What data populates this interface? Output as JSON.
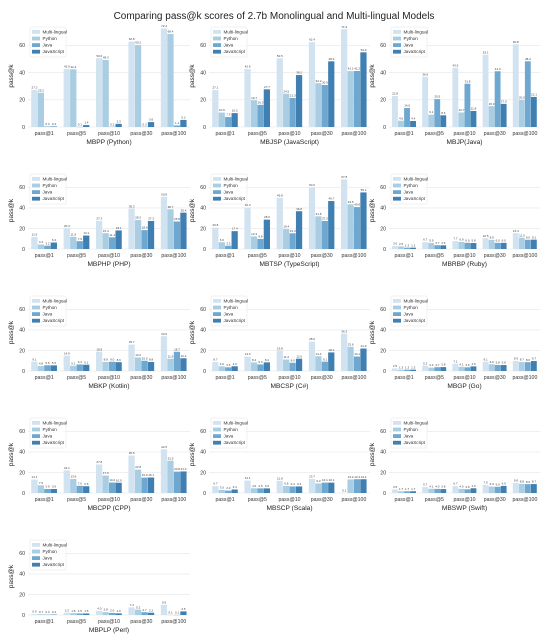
{
  "figure_title": "Comparing pass@k scores of 2.7b Monolingual and Multi-lingual Models",
  "colors": {
    "Multi-lingual": "#d1e2f0",
    "Python": "#a9cde3",
    "Java": "#6ea7cf",
    "JavaScript": "#3f7fb2"
  },
  "chart_data": [
    {
      "type": "bar",
      "subtitle": "MBPP (Python)",
      "ylabel": "pass@k",
      "ylim": [
        0,
        75
      ],
      "categories": [
        "pass@1",
        "pass@5",
        "pass@10",
        "pass@30",
        "pass@100"
      ],
      "series": [
        {
          "name": "Multi-lingual",
          "values": [
            27.2,
            42.6,
            50.6,
            62.8,
            72.4
          ]
        },
        {
          "name": "Python",
          "values": [
            25.2,
            42.4,
            49.3,
            60.2,
            68.4
          ]
        },
        {
          "name": "Java",
          "values": [
            0.4,
            0.1,
            0.2,
            0.2,
            1.1
          ]
        },
        {
          "name": "JavaScript",
          "values": [
            0.4,
            1.4,
            2.3,
            3.6,
            5.2
          ]
        }
      ],
      "legend": "top-left",
      "grid": true
    },
    {
      "type": "bar",
      "subtitle": "MBJSP (JavaScript)",
      "ylabel": "pass@k",
      "ylim": [
        0,
        75
      ],
      "categories": [
        "pass@1",
        "pass@5",
        "pass@10",
        "pass@30",
        "pass@100"
      ],
      "series": [
        {
          "name": "Multi-lingual",
          "values": [
            27.1,
            42.6,
            50.5,
            62.4,
            71.9
          ]
        },
        {
          "name": "Python",
          "values": [
            10.6,
            19.7,
            24.5,
            32.2,
            41.1
          ]
        },
        {
          "name": "Java",
          "values": [
            7.3,
            16.3,
            21.3,
            30.9,
            41.2
          ]
        },
        {
          "name": "JavaScript",
          "values": [
            10.2,
            27.7,
            38.2,
            48.3,
            54.9
          ]
        }
      ],
      "legend": "top-left",
      "grid": true
    },
    {
      "type": "bar",
      "subtitle": "MBJP(Java)",
      "ylabel": "pass@k",
      "ylim": [
        0,
        75
      ],
      "categories": [
        "pass@1",
        "pass@5",
        "pass@10",
        "pass@30",
        "pass@100"
      ],
      "series": [
        {
          "name": "Multi-lingual",
          "values": [
            22.8,
            36.9,
            43.5,
            53.1,
            60.8
          ]
        },
        {
          "name": "Python",
          "values": [
            4.6,
            9.1,
            10.7,
            15.3,
            20.0
          ]
        },
        {
          "name": "Java",
          "values": [
            14.0,
            20.5,
            31.8,
            41.0,
            48.3
          ]
        },
        {
          "name": "JavaScript",
          "values": [
            4.4,
            8.6,
            11.8,
            17.0,
            22.1
          ]
        }
      ],
      "legend": "top-left",
      "grid": true
    },
    {
      "type": "bar",
      "subtitle": "MBPHP (PHP)",
      "ylabel": "pass@k",
      "ylim": [
        0,
        75
      ],
      "categories": [
        "pass@1",
        "pass@5",
        "pass@10",
        "pass@30",
        "pass@100"
      ],
      "series": [
        {
          "name": "Multi-lingual",
          "values": [
            11.6,
            20.3,
            27.3,
            39.3,
            50.8
          ]
        },
        {
          "name": "Python",
          "values": [
            4.4,
            11.9,
            15.4,
            28.2,
            38.7
          ]
        },
        {
          "name": "Java",
          "values": [
            3.2,
            7.6,
            11.4,
            18.4,
            26.8
          ]
        },
        {
          "name": "JavaScript",
          "values": [
            6.3,
            13.1,
            18.1,
            27.3,
            35.4
          ]
        }
      ],
      "legend": "top-left",
      "grid": true
    },
    {
      "type": "bar",
      "subtitle": "MBTSP (TypeScript)",
      "ylabel": "pass@k",
      "ylim": [
        0,
        75
      ],
      "categories": [
        "pass@1",
        "pass@5",
        "pass@10",
        "pass@30",
        "pass@100"
      ],
      "series": [
        {
          "name": "Multi-lingual",
          "values": [
            20.8,
            40.3,
            49.8,
            60.0,
            67.8
          ]
        },
        {
          "name": "Python",
          "values": [
            6.6,
            12.3,
            19.4,
            31.8,
            43.5
          ]
        },
        {
          "name": "Java",
          "values": [
            3.2,
            9.8,
            15.3,
            27.3,
            40.8
          ]
        },
        {
          "name": "JavaScript",
          "values": [
            17.4,
            28.6,
            36.8,
            46.7,
            55.1
          ]
        }
      ],
      "legend": "top-left",
      "grid": true
    },
    {
      "type": "bar",
      "subtitle": "MBRBP (Ruby)",
      "ylabel": "pass@k",
      "ylim": [
        0,
        75
      ],
      "categories": [
        "pass@1",
        "pass@5",
        "pass@10",
        "pass@30",
        "pass@100"
      ],
      "series": [
        {
          "name": "Multi-lingual",
          "values": [
            3.0,
            6.7,
            7.7,
            10.5,
            15.4
          ]
        },
        {
          "name": "Python",
          "values": [
            2.5,
            5.9,
            6.9,
            8.9,
            11.0
          ]
        },
        {
          "name": "Java",
          "values": [
            1.3,
            3.7,
            6.0,
            6.0,
            9.0
          ]
        },
        {
          "name": "JavaScript",
          "values": [
            1.3,
            3.6,
            5.8,
            6.0,
            9.1
          ]
        }
      ],
      "legend": "top-left",
      "grid": true
    },
    {
      "type": "bar",
      "subtitle": "MBKP (Kotlin)",
      "ylabel": "pass@k",
      "ylim": [
        0,
        75
      ],
      "categories": [
        "pass@1",
        "pass@5",
        "pass@10",
        "pass@30",
        "pass@100"
      ],
      "series": [
        {
          "name": "Multi-lingual",
          "values": [
            9.1,
            14.9,
            18.8,
            25.7,
            33.9
          ]
        },
        {
          "name": "Python",
          "values": [
            4.8,
            5.1,
            8.8,
            13.2,
            11.9
          ]
        },
        {
          "name": "Java",
          "values": [
            5.6,
            6.4,
            9.0,
            10.0,
            18.7
          ]
        },
        {
          "name": "JavaScript",
          "values": [
            5.5,
            6.1,
            8.6,
            8.8,
            12.4
          ]
        }
      ],
      "legend": "top-left",
      "grid": true
    },
    {
      "type": "bar",
      "subtitle": "MBCSP (C#)",
      "ylabel": "pass@k",
      "ylim": [
        0,
        75
      ],
      "categories": [
        "pass@1",
        "pass@5",
        "pass@10",
        "pass@30",
        "pass@100"
      ],
      "series": [
        {
          "name": "Multi-lingual",
          "values": [
            8.7,
            14.0,
            19.8,
            28.6,
            36.3
          ]
        },
        {
          "name": "Python",
          "values": [
            4.6,
            8.4,
            11.2,
            14.4,
            23.6
          ]
        },
        {
          "name": "Java",
          "values": [
            3.6,
            6.4,
            8.0,
            9.1,
            14.1
          ]
        },
        {
          "name": "JavaScript",
          "values": [
            4.6,
            8.4,
            12.0,
            18.1,
            21.9
          ]
        }
      ],
      "legend": "top-left",
      "grid": true
    },
    {
      "type": "bar",
      "subtitle": "MBGP (Go)",
      "ylabel": "pass@k",
      "ylim": [
        0,
        75
      ],
      "categories": [
        "pass@1",
        "pass@5",
        "pass@10",
        "pass@30",
        "pass@100"
      ],
      "series": [
        {
          "name": "Multi-lingual",
          "values": [
            2.5,
            5.2,
            7.1,
            9.1,
            9.9
          ]
        },
        {
          "name": "Python",
          "values": [
            1.3,
            3.3,
            4.1,
            6.6,
            8.7
          ]
        },
        {
          "name": "Java",
          "values": [
            1.3,
            3.7,
            3.6,
            5.8,
            8.6
          ]
        },
        {
          "name": "JavaScript",
          "values": [
            1.3,
            3.8,
            4.5,
            5.8,
            9.7
          ]
        }
      ],
      "legend": "top-left",
      "grid": true
    },
    {
      "type": "bar",
      "subtitle": "MBCPP (CPP)",
      "ylabel": "pass@k",
      "ylim": [
        0,
        75
      ],
      "categories": [
        "pass@1",
        "pass@5",
        "pass@10",
        "pass@30",
        "pass@100"
      ],
      "series": [
        {
          "name": "Multi-lingual",
          "values": [
            13.1,
            22.1,
            27.8,
            36.5,
            42.5
          ]
        },
        {
          "name": "Python",
          "values": [
            7.5,
            13.6,
            17.0,
            22.8,
            31.5
          ]
        },
        {
          "name": "Java",
          "values": [
            3.9,
            7.0,
            10.2,
            15.0,
            20.8
          ]
        },
        {
          "name": "JavaScript",
          "values": [
            3.9,
            6.6,
            10.0,
            15.1,
            21.0
          ]
        }
      ],
      "legend": "top-left",
      "grid": true
    },
    {
      "type": "bar",
      "subtitle": "MBSCP (Scala)",
      "ylabel": "pass@k",
      "ylim": [
        0,
        75
      ],
      "categories": [
        "pass@1",
        "pass@5",
        "pass@10",
        "pass@30",
        "pass@100"
      ],
      "series": [
        {
          "name": "Multi-lingual",
          "values": [
            6.7,
            12.1,
            11.8,
            13.7,
            0.1
          ]
        },
        {
          "name": "Python",
          "values": [
            3.0,
            4.6,
            6.8,
            9.3,
            13.2
          ]
        },
        {
          "name": "Java",
          "values": [
            2.3,
            4.5,
            6.4,
            10.1,
            13.4
          ]
        },
        {
          "name": "JavaScript",
          "values": [
            3.4,
            4.5,
            6.4,
            10.1,
            13.4
          ]
        }
      ],
      "legend": "top-left",
      "grid": true
    },
    {
      "type": "bar",
      "subtitle": "MBSWP (Swift)",
      "ylabel": "pass@k",
      "ylim": [
        0,
        75
      ],
      "categories": [
        "pass@1",
        "pass@5",
        "pass@10",
        "pass@30",
        "pass@100"
      ],
      "series": [
        {
          "name": "Multi-lingual",
          "values": [
            3.5,
            5.7,
            6.7,
            7.9,
            9.8
          ]
        },
        {
          "name": "Python",
          "values": [
            1.7,
            4.1,
            4.0,
            6.3,
            8.8
          ]
        },
        {
          "name": "Java",
          "values": [
            1.7,
            4.0,
            3.6,
            6.0,
            8.6
          ]
        },
        {
          "name": "JavaScript",
          "values": [
            1.7,
            3.8,
            4.6,
            6.9,
            8.7
          ]
        }
      ],
      "legend": "top-left",
      "grid": true
    },
    {
      "type": "bar",
      "subtitle": "MBPLP (Perl)",
      "ylabel": "pass@k",
      "ylim": [
        0,
        75
      ],
      "categories": [
        "pass@1",
        "pass@5",
        "pass@10",
        "pass@30",
        "pass@100"
      ],
      "series": [
        {
          "name": "Multi-lingual",
          "values": [
            0.9,
            2.2,
            4.0,
            7.4,
            9.9
          ]
        },
        {
          "name": "Python",
          "values": [
            0.7,
            1.8,
            2.8,
            5.2,
            0.1
          ]
        },
        {
          "name": "Java",
          "values": [
            0.4,
            1.5,
            2.0,
            2.7,
            0.1
          ]
        },
        {
          "name": "JavaScript",
          "values": [
            0.4,
            1.5,
            1.6,
            2.2,
            3.5
          ]
        }
      ],
      "legend": "top-left",
      "grid": true
    }
  ]
}
